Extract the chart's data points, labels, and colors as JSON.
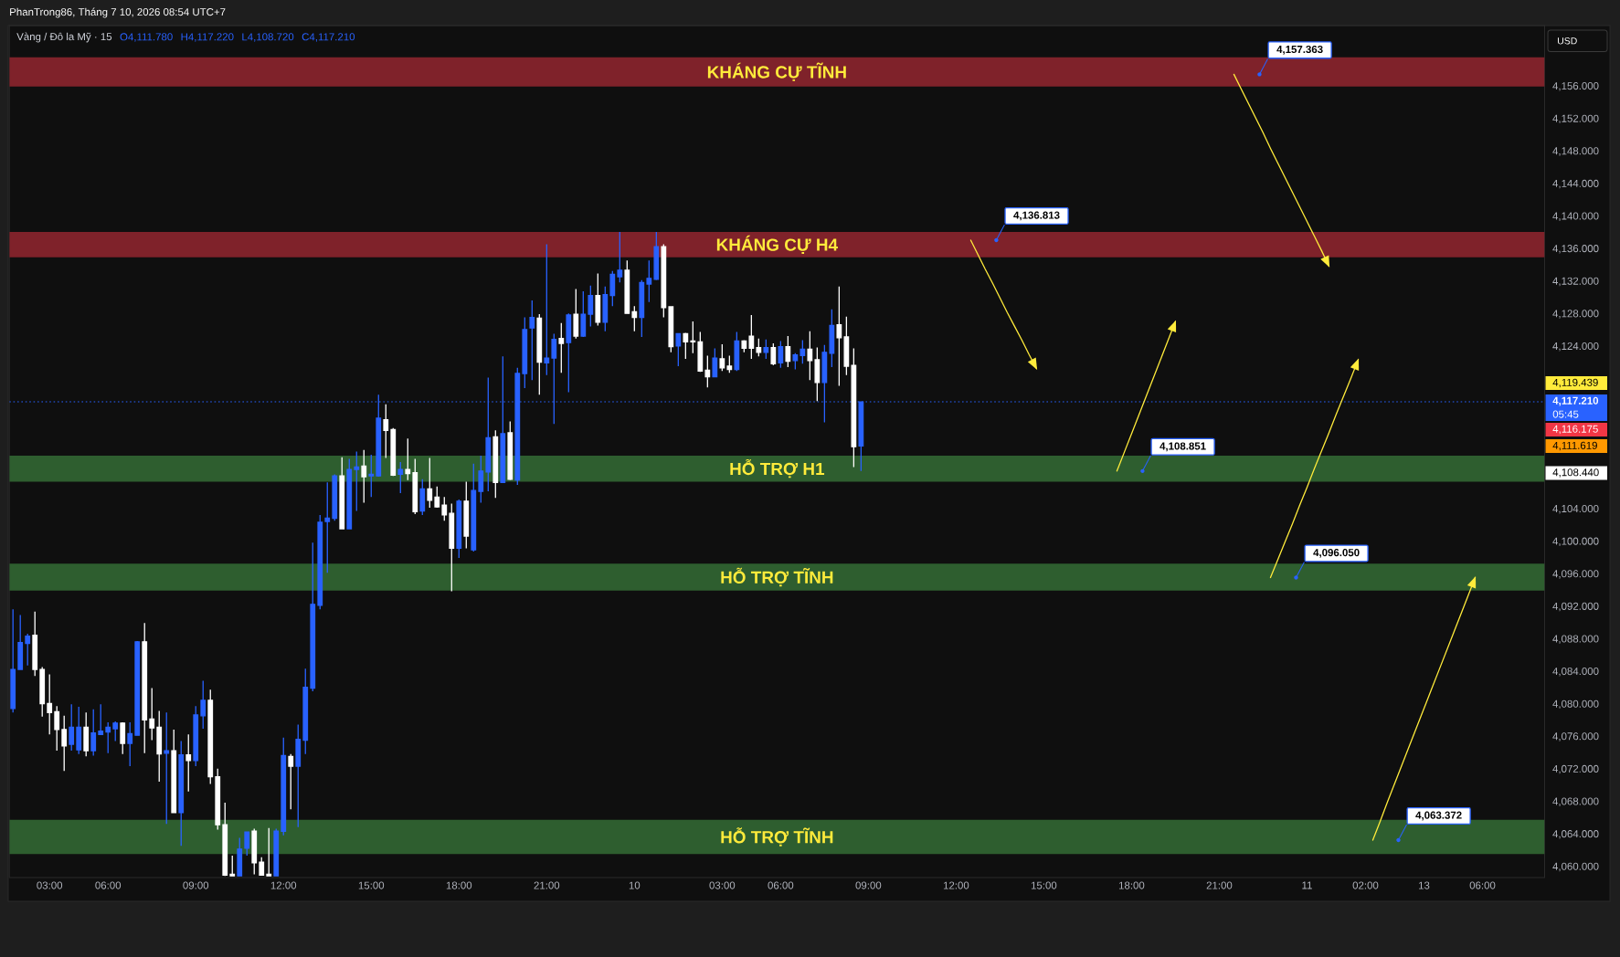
{
  "chart_data": {
    "type": "candlestick",
    "title": "Vàng / Đô la Mỹ · 15",
    "subtitle": "PhanTrong86, Tháng 7 10, 2026 08:54 UTC+7",
    "ylabel": "USD",
    "categories": [
      null,
      null,
      null,
      null,
      null,
      "03:00",
      null,
      null,
      null,
      null,
      null,
      null,
      null,
      "06:00",
      null,
      null,
      null,
      null,
      null,
      null,
      null,
      null,
      null,
      null,
      null,
      "09:00",
      null,
      null,
      null,
      null,
      null,
      null,
      null,
      null,
      null,
      null,
      null,
      "12:00",
      null,
      null,
      null,
      null,
      null,
      null,
      null,
      null,
      null,
      null,
      null,
      "15:00",
      null,
      null,
      null,
      null,
      null,
      null,
      null,
      null,
      null,
      null,
      null,
      "18:00",
      null,
      null,
      null,
      null,
      null,
      null,
      null,
      null,
      null,
      null,
      null,
      "21:00",
      null,
      null,
      null,
      null,
      null,
      null,
      null,
      null,
      null,
      null,
      null,
      "10",
      null,
      null,
      null,
      null,
      null,
      null,
      null,
      null,
      null,
      null,
      null,
      "03:00",
      null,
      null,
      null,
      null,
      null,
      null,
      null,
      "06:00",
      null,
      null,
      null,
      null,
      null,
      null,
      null,
      null,
      null,
      null,
      null,
      "09:00",
      null,
      null,
      null,
      null,
      null,
      null,
      null,
      null,
      null,
      null,
      null,
      "12:00",
      null,
      null,
      null,
      null,
      null,
      null,
      null,
      null,
      null,
      null,
      null,
      "15:00",
      null,
      null,
      null,
      null,
      null,
      null,
      null,
      null,
      null,
      null,
      null,
      "18:00",
      null,
      null,
      null,
      null,
      null,
      null,
      null,
      null,
      null,
      null,
      null,
      "21:00",
      null,
      null,
      null,
      null,
      null,
      null,
      null,
      null,
      null,
      null,
      null,
      "11",
      null,
      null,
      null,
      null,
      null,
      null,
      null,
      "02:00",
      null,
      null,
      null,
      null,
      null,
      null,
      null,
      "13",
      null,
      null,
      null,
      null,
      null,
      null,
      null,
      "06:00",
      null,
      null,
      null,
      null,
      null,
      null,
      null,
      null
    ],
    "ohlc": [
      [
        4079.5,
        4091.7,
        4079.0,
        4084.3
      ],
      [
        4084.3,
        4091.0,
        4084.3,
        4087.6
      ],
      [
        4087.5,
        4088.7,
        4084.8,
        4088.4
      ],
      [
        4088.5,
        4091.4,
        4083.5,
        4084.3
      ],
      [
        4084.3,
        4084.6,
        4078.5,
        4080.1
      ],
      [
        4080.1,
        4083.7,
        4076.3,
        4079.0
      ],
      [
        4079.1,
        4079.8,
        4074.3,
        4076.9
      ],
      [
        4076.9,
        4078.6,
        4071.8,
        4074.9
      ],
      [
        4075.1,
        4080.0,
        4074.3,
        4077.2
      ],
      [
        4074.4,
        4079.7,
        4073.9,
        4077.2
      ],
      [
        4077.2,
        4079.0,
        4073.6,
        4074.3
      ],
      [
        4074.3,
        4079.4,
        4073.7,
        4076.5
      ],
      [
        4076.3,
        4080.0,
        4076.3,
        4076.7
      ],
      [
        4076.6,
        4077.8,
        4074.0,
        4077.2
      ],
      [
        4077.0,
        4077.9,
        4075.5,
        4077.7
      ],
      [
        4077.7,
        4077.8,
        4073.9,
        4075.2
      ],
      [
        4075.2,
        4077.8,
        4072.4,
        4076.4
      ],
      [
        4076.2,
        4087.8,
        4076.2,
        4087.7
      ],
      [
        4087.7,
        4090.0,
        4074.0,
        4078.1
      ],
      [
        4078.2,
        4082.0,
        4075.6,
        4077.1
      ],
      [
        4077.2,
        4079.2,
        4070.5,
        4073.9
      ],
      [
        4074.0,
        4079.0,
        4065.3,
        4074.3
      ],
      [
        4074.3,
        4076.9,
        4066.7,
        4066.7
      ],
      [
        4066.7,
        4075.5,
        4062.6,
        4073.8
      ],
      [
        4073.8,
        4076.3,
        4069.3,
        4073.1
      ],
      [
        4073.1,
        4079.8,
        4072.4,
        4078.7
      ],
      [
        4078.6,
        4082.9,
        4077.0,
        4080.5
      ],
      [
        4080.5,
        4081.8,
        4070.2,
        4071.1
      ],
      [
        4071.1,
        4072.1,
        4064.6,
        4065.2
      ],
      [
        4065.2,
        4067.9,
        4058.9,
        4059.0
      ],
      [
        4059.1,
        4061.4,
        4058.9,
        4058.9
      ],
      [
        4058.9,
        4063.6,
        4058.9,
        4062.2
      ],
      [
        4062.3,
        4064.3,
        4061.4,
        4064.3
      ],
      [
        4064.4,
        4064.7,
        4059.1,
        4060.5
      ],
      [
        4060.6,
        4061.2,
        4059.0,
        4059.0
      ],
      [
        4059.1,
        4064.8,
        4058.9,
        4058.9
      ],
      [
        4058.9,
        4064.7,
        4058.9,
        4064.4
      ],
      [
        4064.4,
        4075.9,
        4063.9,
        4073.7
      ],
      [
        4073.6,
        4073.9,
        4067.1,
        4072.4
      ],
      [
        4072.4,
        4077.5,
        4064.9,
        4075.7
      ],
      [
        4075.6,
        4084.4,
        4073.9,
        4082.1
      ],
      [
        4082.0,
        4099.9,
        4081.6,
        4092.3
      ],
      [
        4092.2,
        4103.3,
        4091.7,
        4102.4
      ],
      [
        4102.5,
        4107.3,
        4096.2,
        4102.9
      ],
      [
        4102.9,
        4108.3,
        4102.6,
        4108.1
      ],
      [
        4108.1,
        4110.4,
        4101.6,
        4101.6
      ],
      [
        4101.6,
        4110.2,
        4101.6,
        4108.9
      ],
      [
        4108.9,
        4111.1,
        4103.8,
        4109.2
      ],
      [
        4109.3,
        4111.3,
        4104.8,
        4108.0
      ],
      [
        4108.1,
        4110.7,
        4105.5,
        4108.3
      ],
      [
        4108.1,
        4118.1,
        4108.0,
        4115.2
      ],
      [
        4115.0,
        4116.9,
        4110.3,
        4113.7
      ],
      [
        4113.8,
        4114.0,
        4108.1,
        4108.2
      ],
      [
        4108.3,
        4109.8,
        4106.0,
        4108.9
      ],
      [
        4108.9,
        4112.7,
        4107.6,
        4108.4
      ],
      [
        4108.5,
        4110.2,
        4103.4,
        4103.7
      ],
      [
        4103.8,
        4107.7,
        4103.3,
        4106.5
      ],
      [
        4106.5,
        4110.3,
        4104.2,
        4105.1
      ],
      [
        4105.5,
        4106.8,
        4104.2,
        4104.3
      ],
      [
        4104.5,
        4105.5,
        4102.6,
        4103.3
      ],
      [
        4103.5,
        4104.7,
        4093.9,
        4099.2
      ],
      [
        4099.2,
        4105.2,
        4098.0,
        4105.0
      ],
      [
        4105.0,
        4107.4,
        4099.2,
        4100.7
      ],
      [
        4099.0,
        4109.6,
        4098.8,
        4106.3
      ],
      [
        4106.2,
        4110.6,
        4104.8,
        4108.7
      ],
      [
        4108.6,
        4120.2,
        4106.2,
        4112.8
      ],
      [
        4112.9,
        4113.7,
        4105.4,
        4107.3
      ],
      [
        4107.3,
        4122.8,
        4107.3,
        4113.3
      ],
      [
        4113.4,
        4114.8,
        4107.6,
        4107.7
      ],
      [
        4107.6,
        4121.4,
        4107.0,
        4120.7
      ],
      [
        4120.7,
        4127.6,
        4118.9,
        4126.1
      ],
      [
        4126.3,
        4129.7,
        4119.9,
        4127.6
      ],
      [
        4127.5,
        4128.0,
        4118.1,
        4122.1
      ],
      [
        4122.0,
        4136.6,
        4120.5,
        4122.6
      ],
      [
        4122.6,
        4125.6,
        4114.5,
        4124.9
      ],
      [
        4125.0,
        4126.9,
        4120.8,
        4124.4
      ],
      [
        4124.5,
        4128.1,
        4118.4,
        4127.9
      ],
      [
        4128.0,
        4131.1,
        4125.0,
        4125.3
      ],
      [
        4125.3,
        4130.8,
        4125.2,
        4128.0
      ],
      [
        4128.0,
        4131.5,
        4126.5,
        4130.3
      ],
      [
        4130.3,
        4133.0,
        4126.6,
        4127.0
      ],
      [
        4127.0,
        4131.4,
        4125.9,
        4130.4
      ],
      [
        4130.3,
        4133.3,
        4129.0,
        4132.9
      ],
      [
        4132.6,
        4138.1,
        4131.9,
        4133.4
      ],
      [
        4133.4,
        4134.6,
        4128.1,
        4128.1
      ],
      [
        4128.3,
        4129.0,
        4125.9,
        4127.6
      ],
      [
        4127.6,
        4132.2,
        4125.2,
        4131.9
      ],
      [
        4131.7,
        4134.6,
        4129.5,
        4132.4
      ],
      [
        4132.3,
        4138.1,
        4132.2,
        4136.3
      ],
      [
        4136.3,
        4136.6,
        4127.6,
        4128.8
      ],
      [
        4128.9,
        4128.9,
        4123.3,
        4124.0
      ],
      [
        4124.1,
        4125.6,
        4121.6,
        4125.6
      ],
      [
        4125.6,
        4125.7,
        4122.5,
        4124.6
      ],
      [
        4124.7,
        4127.1,
        4123.2,
        4124.6
      ],
      [
        4124.6,
        4125.8,
        4120.9,
        4121.0
      ],
      [
        4121.1,
        4122.9,
        4119.0,
        4120.3
      ],
      [
        4120.3,
        4123.8,
        4120.3,
        4122.6
      ],
      [
        4122.5,
        4124.3,
        4121.0,
        4121.4
      ],
      [
        4121.6,
        4122.9,
        4120.8,
        4121.2
      ],
      [
        4121.2,
        4125.8,
        4121.0,
        4124.7
      ],
      [
        4124.7,
        4124.8,
        4123.3,
        4123.8
      ],
      [
        4125.3,
        4127.9,
        4122.5,
        4123.8
      ],
      [
        4123.9,
        4125.0,
        4122.8,
        4123.3
      ],
      [
        4123.3,
        4124.9,
        4122.5,
        4123.9
      ],
      [
        4123.9,
        4124.4,
        4121.7,
        4121.9
      ],
      [
        4122.0,
        4124.7,
        4121.4,
        4124.0
      ],
      [
        4124.0,
        4125.3,
        4121.5,
        4122.2
      ],
      [
        4122.3,
        4123.2,
        4121.2,
        4123.0
      ],
      [
        4122.9,
        4124.8,
        4121.9,
        4123.7
      ],
      [
        4123.7,
        4125.9,
        4119.9,
        4122.3
      ],
      [
        4122.4,
        4123.9,
        4117.3,
        4119.6
      ],
      [
        4119.6,
        4124.2,
        4114.7,
        4123.3
      ],
      [
        4123.2,
        4128.6,
        4121.5,
        4126.6
      ],
      [
        4126.7,
        4131.4,
        4119.2,
        4125.1
      ],
      [
        4125.2,
        4127.7,
        4120.5,
        4121.6
      ],
      [
        4121.7,
        4123.8,
        4109.2,
        4111.7
      ],
      [
        4111.78,
        4117.22,
        4108.72,
        4117.21
      ],
      null,
      null,
      null,
      null,
      null,
      null,
      null,
      null,
      null,
      null,
      null,
      null,
      null,
      null,
      null,
      null,
      null,
      null,
      null,
      null,
      null,
      null,
      null,
      null,
      null,
      null,
      null,
      null,
      null,
      null,
      null,
      null,
      null,
      null,
      null,
      null,
      null,
      null,
      null,
      null,
      null,
      null,
      null,
      null,
      null,
      null,
      null,
      null,
      null,
      null,
      null,
      null,
      null,
      null,
      null,
      null,
      null,
      null,
      null,
      null,
      null,
      null,
      null,
      null,
      null,
      null,
      null,
      null,
      null,
      null,
      null,
      null,
      null,
      null,
      null,
      null,
      null,
      null,
      null,
      null,
      null,
      null,
      null,
      null,
      null,
      null,
      null,
      null,
      null,
      null,
      null,
      null,
      null
    ],
    "colors": [
      "#2962ff",
      "#2962ff",
      "#2962ff",
      "#ffffff",
      "#ffffff",
      "#ffffff",
      "#ffffff",
      "#ffffff",
      "#2962ff",
      "#2962ff",
      "#ffffff",
      "#2962ff",
      "#2962ff",
      "#2962ff",
      "#2962ff",
      "#ffffff",
      "#2962ff",
      "#2962ff",
      "#ffffff",
      "#ffffff",
      "#ffffff",
      "#2962ff",
      "#ffffff",
      "#2962ff",
      "#ffffff",
      "#2962ff",
      "#2962ff",
      "#ffffff",
      "#ffffff",
      "#ffffff",
      "#ffffff",
      "#2962ff",
      "#2962ff",
      "#ffffff",
      "#ffffff",
      "#ffffff",
      "#2962ff",
      "#2962ff",
      "#ffffff",
      "#2962ff",
      "#2962ff",
      "#2962ff",
      "#2962ff",
      "#2962ff",
      "#2962ff",
      "#ffffff",
      "#2962ff",
      "#2962ff",
      "#ffffff",
      "#2962ff",
      "#2962ff",
      "#ffffff",
      "#ffffff",
      "#2962ff",
      "#ffffff",
      "#ffffff",
      "#2962ff",
      "#ffffff",
      "#ffffff",
      "#ffffff",
      "#ffffff",
      "#2962ff",
      "#ffffff",
      "#2962ff",
      "#2962ff",
      "#2962ff",
      "#ffffff",
      "#2962ff",
      "#ffffff",
      "#2962ff",
      "#2962ff",
      "#2962ff",
      "#ffffff",
      "#2962ff",
      "#2962ff",
      "#ffffff",
      "#2962ff",
      "#ffffff",
      "#2962ff",
      "#2962ff",
      "#ffffff",
      "#2962ff",
      "#2962ff",
      "#2962ff",
      "#ffffff",
      "#ffffff",
      "#2962ff",
      "#2962ff",
      "#2962ff",
      "#ffffff",
      "#ffffff",
      "#2962ff",
      "#ffffff",
      "#ffffff",
      "#ffffff",
      "#ffffff",
      "#2962ff",
      "#ffffff",
      "#ffffff",
      "#2962ff",
      "#ffffff",
      "#ffffff",
      "#ffffff",
      "#2962ff",
      "#ffffff",
      "#2962ff",
      "#ffffff",
      "#2962ff",
      "#2962ff",
      "#ffffff",
      "#ffffff",
      "#2962ff",
      "#2962ff",
      "#ffffff",
      "#ffffff",
      "#ffffff",
      "#2962ff",
      null,
      null,
      null,
      null,
      null,
      null,
      null,
      null,
      null,
      null,
      null,
      null,
      null,
      null,
      null,
      null,
      null,
      null,
      null,
      null,
      null,
      null,
      null,
      null,
      null,
      null,
      null,
      null,
      null,
      null,
      null,
      null,
      null,
      null,
      null,
      null,
      null,
      null,
      null,
      null,
      null,
      null,
      null,
      null,
      null,
      null,
      null,
      null,
      null,
      null,
      null,
      null,
      null,
      null,
      null,
      null,
      null,
      null,
      null,
      null,
      null,
      null,
      null,
      null,
      null,
      null,
      null,
      null,
      null,
      null,
      null,
      null,
      null,
      null,
      null,
      null,
      null,
      null,
      null,
      null,
      null,
      null,
      null,
      null,
      null,
      null,
      null,
      null,
      null,
      null,
      null,
      null,
      null
    ],
    "series": [
      {
        "type": "line",
        "color": "#ffeb3b",
        "values": [
          null,
          null,
          null,
          null,
          null,
          null,
          null,
          null,
          null,
          null,
          null,
          null,
          null,
          null,
          null,
          null,
          null,
          null,
          null,
          null,
          null,
          null,
          null,
          null,
          null,
          null,
          null,
          null,
          null,
          null,
          null,
          null,
          null,
          null,
          null,
          null,
          null,
          null,
          null,
          null,
          null,
          null,
          null,
          null,
          null,
          null,
          null,
          null,
          null,
          null,
          null,
          null,
          null,
          null,
          null,
          null,
          null,
          null,
          null,
          null,
          null,
          null,
          null,
          null,
          null,
          null,
          null,
          null,
          null,
          null,
          null,
          null,
          null,
          null,
          null,
          null,
          null,
          null,
          null,
          null,
          null,
          null,
          null,
          null,
          null,
          null,
          null,
          null,
          null,
          null,
          null,
          null,
          null,
          null,
          null,
          null,
          null,
          null,
          null,
          null,
          null,
          null,
          null,
          null,
          null,
          null,
          null,
          null,
          null,
          null,
          null,
          null,
          null,
          null,
          null,
          null,
          null,
          null,
          null,
          null,
          null,
          null,
          null,
          null,
          null,
          null,
          null,
          null,
          null,
          null,
          null,
          null,
          null,
          null,
          null,
          null,
          null,
          null,
          null,
          null,
          null,
          null,
          null,
          null,
          null,
          null,
          null,
          null,
          null,
          null,
          null,
          null,
          null,
          null,
          null,
          null,
          null,
          null,
          null,
          null,
          null,
          null,
          null,
          null,
          null,
          null,
          null,
          4157.5,
          4155.7,
          4153.9,
          4152.1,
          4150.3,
          4148.4,
          4146.6,
          4144.8,
          4143.0,
          4141.2,
          4139.4,
          4137.6,
          4135.8,
          4133.9,
          null,
          null,
          null,
          null,
          null,
          null,
          null,
          null,
          null,
          null,
          null,
          null,
          null,
          null,
          null,
          null,
          null,
          null,
          null,
          null,
          null,
          null,
          null,
          null,
          null,
          null,
          null,
          null,
          null
        ]
      },
      {
        "type": "line",
        "color": "#ffeb3b",
        "values": [
          null,
          null,
          null,
          null,
          null,
          null,
          null,
          null,
          null,
          null,
          null,
          null,
          null,
          null,
          null,
          null,
          null,
          null,
          null,
          null,
          null,
          null,
          null,
          null,
          null,
          null,
          null,
          null,
          null,
          null,
          null,
          null,
          null,
          null,
          null,
          null,
          null,
          null,
          null,
          null,
          null,
          null,
          null,
          null,
          null,
          null,
          null,
          null,
          null,
          null,
          null,
          null,
          null,
          null,
          null,
          null,
          null,
          null,
          null,
          null,
          null,
          null,
          null,
          null,
          null,
          null,
          null,
          null,
          null,
          null,
          null,
          null,
          null,
          null,
          null,
          null,
          null,
          null,
          null,
          null,
          null,
          null,
          null,
          null,
          null,
          null,
          null,
          null,
          null,
          null,
          null,
          null,
          null,
          null,
          null,
          null,
          null,
          null,
          null,
          null,
          null,
          null,
          null,
          null,
          null,
          null,
          null,
          null,
          null,
          null,
          null,
          null,
          null,
          null,
          null,
          null,
          null,
          null,
          null,
          null,
          null,
          null,
          null,
          null,
          null,
          null,
          null,
          null,
          null,
          null,
          null,
          4137.1,
          4135.3,
          4133.5,
          4131.8,
          4130.0,
          4128.2,
          4126.5,
          4124.8,
          4123.0,
          4121.3,
          null,
          null,
          null,
          null,
          null,
          null,
          null,
          null,
          null,
          null,
          null,
          null,
          null,
          null,
          null,
          null,
          null,
          null,
          null,
          null,
          null,
          null,
          null,
          null,
          null,
          null,
          null,
          null,
          null,
          null,
          null,
          null,
          null,
          null,
          null,
          null,
          null,
          null,
          null,
          null,
          null,
          null,
          null,
          null,
          null,
          null,
          null,
          null,
          null,
          null,
          null,
          null,
          null,
          null,
          null,
          null,
          null,
          null,
          null,
          null,
          null,
          null,
          null,
          null,
          null,
          null,
          null,
          null,
          null
        ]
      },
      {
        "type": "line",
        "color": "#ffeb3b",
        "values": [
          null,
          null,
          null,
          null,
          null,
          null,
          null,
          null,
          null,
          null,
          null,
          null,
          null,
          null,
          null,
          null,
          null,
          null,
          null,
          null,
          null,
          null,
          null,
          null,
          null,
          null,
          null,
          null,
          null,
          null,
          null,
          null,
          null,
          null,
          null,
          null,
          null,
          null,
          null,
          null,
          null,
          null,
          null,
          null,
          null,
          null,
          null,
          null,
          null,
          null,
          null,
          null,
          null,
          null,
          null,
          null,
          null,
          null,
          null,
          null,
          null,
          null,
          null,
          null,
          null,
          null,
          null,
          null,
          null,
          null,
          null,
          null,
          null,
          null,
          null,
          null,
          null,
          null,
          null,
          null,
          null,
          null,
          null,
          null,
          null,
          null,
          null,
          null,
          null,
          null,
          null,
          null,
          null,
          null,
          null,
          null,
          null,
          null,
          null,
          null,
          null,
          null,
          null,
          null,
          null,
          null,
          null,
          null,
          null,
          null,
          null,
          null,
          null,
          null,
          null,
          null,
          null,
          null,
          null,
          null,
          null,
          null,
          null,
          null,
          null,
          null,
          null,
          null,
          null,
          null,
          null,
          null,
          null,
          null,
          null,
          null,
          null,
          null,
          null,
          null,
          null,
          null,
          null,
          null,
          null,
          null,
          null,
          null,
          null,
          null,
          null,
          4108.7,
          4111.0,
          4113.3,
          4115.6,
          4117.9,
          4120.2,
          4122.5,
          4124.8,
          4127.1,
          null,
          null,
          null,
          null,
          null,
          null,
          null,
          null,
          null,
          null,
          null,
          null,
          null,
          null,
          null,
          null,
          null,
          null,
          null,
          null,
          null,
          null,
          null,
          null,
          null,
          null,
          null,
          null,
          null,
          null,
          null,
          null,
          null,
          null,
          null,
          null,
          null,
          null,
          null,
          null,
          null,
          null,
          null,
          null,
          null,
          null,
          null,
          null,
          null,
          null
        ]
      },
      {
        "type": "line",
        "color": "#ffeb3b",
        "values": [
          null,
          null,
          null,
          null,
          null,
          null,
          null,
          null,
          null,
          null,
          null,
          null,
          null,
          null,
          null,
          null,
          null,
          null,
          null,
          null,
          null,
          null,
          null,
          null,
          null,
          null,
          null,
          null,
          null,
          null,
          null,
          null,
          null,
          null,
          null,
          null,
          null,
          null,
          null,
          null,
          null,
          null,
          null,
          null,
          null,
          null,
          null,
          null,
          null,
          null,
          null,
          null,
          null,
          null,
          null,
          null,
          null,
          null,
          null,
          null,
          null,
          null,
          null,
          null,
          null,
          null,
          null,
          null,
          null,
          null,
          null,
          null,
          null,
          null,
          null,
          null,
          null,
          null,
          null,
          null,
          null,
          null,
          null,
          null,
          null,
          null,
          null,
          null,
          null,
          null,
          null,
          null,
          null,
          null,
          null,
          null,
          null,
          null,
          null,
          null,
          null,
          null,
          null,
          null,
          null,
          null,
          null,
          null,
          null,
          null,
          null,
          null,
          null,
          null,
          null,
          null,
          null,
          null,
          null,
          null,
          null,
          null,
          null,
          null,
          null,
          null,
          null,
          null,
          null,
          null,
          null,
          null,
          null,
          null,
          null,
          null,
          null,
          null,
          null,
          null,
          null,
          null,
          null,
          null,
          null,
          null,
          null,
          null,
          null,
          null,
          null,
          null,
          null,
          null,
          null,
          null,
          null,
          null,
          null,
          null,
          null,
          null,
          null,
          null,
          null,
          null,
          null,
          null,
          null,
          null,
          null,
          null,
          4095.6,
          4097.8,
          4100.0,
          4102.2,
          4104.5,
          4106.7,
          4109.0,
          4111.2,
          4113.4,
          4115.7,
          4117.9,
          4120.1,
          4122.4,
          null,
          null,
          null,
          null,
          null,
          null,
          null,
          null,
          null,
          null,
          null,
          null,
          null,
          null,
          null,
          null,
          null,
          null,
          null,
          null,
          null,
          null,
          null,
          null,
          null
        ]
      },
      {
        "type": "line",
        "color": "#ffeb3b",
        "values": [
          null,
          null,
          null,
          null,
          null,
          null,
          null,
          null,
          null,
          null,
          null,
          null,
          null,
          null,
          null,
          null,
          null,
          null,
          null,
          null,
          null,
          null,
          null,
          null,
          null,
          null,
          null,
          null,
          null,
          null,
          null,
          null,
          null,
          null,
          null,
          null,
          null,
          null,
          null,
          null,
          null,
          null,
          null,
          null,
          null,
          null,
          null,
          null,
          null,
          null,
          null,
          null,
          null,
          null,
          null,
          null,
          null,
          null,
          null,
          null,
          null,
          null,
          null,
          null,
          null,
          null,
          null,
          null,
          null,
          null,
          null,
          null,
          null,
          null,
          null,
          null,
          null,
          null,
          null,
          null,
          null,
          null,
          null,
          null,
          null,
          null,
          null,
          null,
          null,
          null,
          null,
          null,
          null,
          null,
          null,
          null,
          null,
          null,
          null,
          null,
          null,
          null,
          null,
          null,
          null,
          null,
          null,
          null,
          null,
          null,
          null,
          null,
          null,
          null,
          null,
          null,
          null,
          null,
          null,
          null,
          null,
          null,
          null,
          null,
          null,
          null,
          null,
          null,
          null,
          null,
          null,
          null,
          null,
          null,
          null,
          null,
          null,
          null,
          null,
          null,
          null,
          null,
          null,
          null,
          null,
          null,
          null,
          null,
          null,
          null,
          null,
          null,
          null,
          null,
          null,
          null,
          null,
          null,
          null,
          null,
          null,
          null,
          null,
          null,
          null,
          null,
          null,
          null,
          null,
          null,
          null,
          null,
          null,
          null,
          null,
          null,
          null,
          null,
          null,
          null,
          null,
          null,
          null,
          null,
          null,
          null,
          4063.3,
          4065.6,
          4068.0,
          4070.3,
          4072.6,
          4074.9,
          4077.2,
          4079.5,
          4081.8,
          4084.1,
          4086.4,
          4088.7,
          4091.0,
          4093.3,
          4095.6,
          null,
          null,
          null,
          null,
          null,
          null,
          null,
          null,
          null
        ]
      }
    ],
    "ylim": [
      4058.7,
      4163.5
    ],
    "yticks": [
      {
        "value": 4060,
        "label": "4,060.000"
      },
      {
        "value": 4064,
        "label": "4,064.000"
      },
      {
        "value": 4068,
        "label": "4,068.000"
      },
      {
        "value": 4072,
        "label": "4,072.000"
      },
      {
        "value": 4076,
        "label": "4,076.000"
      },
      {
        "value": 4080,
        "label": "4,080.000"
      },
      {
        "value": 4084,
        "label": "4,084.000"
      },
      {
        "value": 4088,
        "label": "4,088.000"
      },
      {
        "value": 4092,
        "label": "4,092.000"
      },
      {
        "value": 4096,
        "label": "4,096.000"
      },
      {
        "value": 4100,
        "label": "4,100.000"
      },
      {
        "value": 4104,
        "label": "4,104.000"
      },
      {
        "value": 4124,
        "label": "4,124.000"
      },
      {
        "value": 4128,
        "label": "4,128.000"
      },
      {
        "value": 4132,
        "label": "4,132.000"
      },
      {
        "value": 4136,
        "label": "4,136.000"
      },
      {
        "value": 4140,
        "label": "4,140.000"
      },
      {
        "value": 4144,
        "label": "4,144.000"
      },
      {
        "value": 4148,
        "label": "4,148.000"
      },
      {
        "value": 4152,
        "label": "4,152.000"
      },
      {
        "value": 4156,
        "label": "4,156.000"
      }
    ],
    "bands": [
      {
        "axis": "y",
        "from": 4156.0,
        "to": 4159.6,
        "label": "KHÁNG CỰ TĨNH",
        "color": "#7f222a"
      },
      {
        "axis": "y",
        "from": 4135.0,
        "to": 4138.1,
        "label": "KHÁNG CỰ H4",
        "color": "#7f222a"
      },
      {
        "axis": "y",
        "from": 4107.4,
        "to": 4110.6,
        "label": "HỖ TRỢ H1",
        "color": "#2e5e2f"
      },
      {
        "axis": "y",
        "from": 4094.0,
        "to": 4097.3,
        "label": "HỖ TRỢ TĨNH",
        "color": "#2e5e2f"
      },
      {
        "axis": "y",
        "from": 4061.6,
        "to": 4065.8,
        "label": "HỖ TRỢ TĨNH",
        "color": "#2e5e2f"
      }
    ],
    "ref_lines": [
      {
        "axis": "y",
        "value": 4117.21,
        "label": "4,117.210",
        "color": "#2962ff",
        "line_style": "dotted"
      }
    ],
    "annotations": [
      "O4,111.780",
      "H4,117.220",
      "L4,108.720",
      "C4,117.210",
      "05:45",
      "4,119.439",
      "4,116.175",
      "4,111.619",
      "4,108.440",
      "4,157.363",
      "4,136.813",
      "4,108.851",
      "4,096.050",
      "4,063.372"
    ]
  }
}
